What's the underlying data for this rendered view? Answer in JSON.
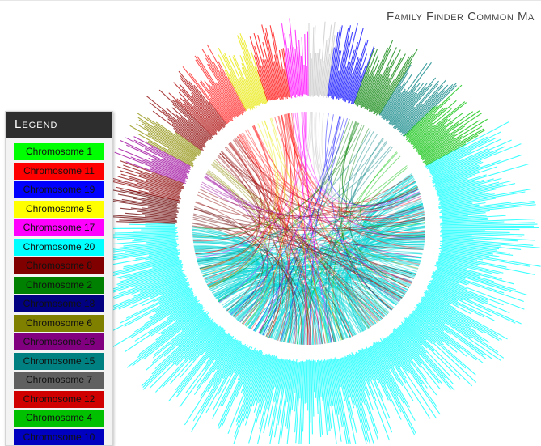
{
  "page": {
    "title": "Family Finder Common Ma"
  },
  "legend": {
    "header": "Legend",
    "items": [
      {
        "label": "Chromosome 1",
        "color": "#00ff00"
      },
      {
        "label": "Chromosome 11",
        "color": "#ff0000"
      },
      {
        "label": "Chromosome 19",
        "color": "#0000ff"
      },
      {
        "label": "Chromosome 5",
        "color": "#ffff00"
      },
      {
        "label": "Chromosome 17",
        "color": "#ff00ff"
      },
      {
        "label": "Chromosome 20",
        "color": "#00ffff"
      },
      {
        "label": "Chromosome 8",
        "color": "#800000"
      },
      {
        "label": "Chromosome 2",
        "color": "#008000"
      },
      {
        "label": "Chromosome 18",
        "color": "#000080"
      },
      {
        "label": "Chromosome 6",
        "color": "#808000"
      },
      {
        "label": "Chromosome 16",
        "color": "#800080"
      },
      {
        "label": "Chromosome 15",
        "color": "#008080"
      },
      {
        "label": "Chromosome 7",
        "color": "#606060"
      },
      {
        "label": "Chromosome 12",
        "color": "#d00000"
      },
      {
        "label": "Chromosome 4",
        "color": "#00c000"
      },
      {
        "label": "Chromosome 10",
        "color": "#0000c0"
      }
    ]
  }
}
